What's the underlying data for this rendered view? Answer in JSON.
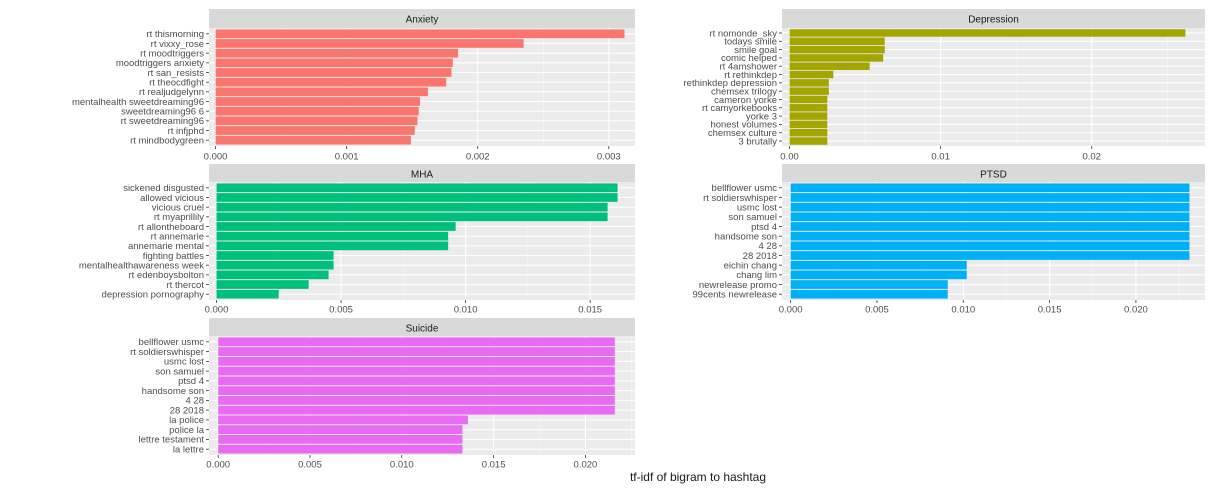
{
  "chart_data": {
    "type": "bar",
    "orientation": "horizontal",
    "xlabel": "tf-idf of bigram to hashtag",
    "grid": true,
    "legend": "none",
    "facet_strip_color": "#d9d9d9",
    "panel_background": "#ebebeb",
    "panels": [
      {
        "title": "Anxiety",
        "color": "#f8766d",
        "xlim": [
          -5e-05,
          0.0032
        ],
        "ticks": [
          0,
          0.001,
          0.002,
          0.003
        ],
        "tick_labels": [
          "0.000",
          "0.001",
          "0.002",
          "0.003"
        ],
        "categories": [
          "rt thismorning",
          "rt vixxy_rose",
          "rt moodtriggers",
          "moodtriggers anxiety",
          "rt san_resists",
          "rt theocdfight",
          "rt realjudgelynn",
          "mentalhealth sweetdreaming96",
          "sweetdreaming96 6",
          "rt sweetdreaming96",
          "rt infjphd",
          "rt mindbodygreen"
        ],
        "values": [
          0.00312,
          0.00235,
          0.00185,
          0.00181,
          0.0018,
          0.00176,
          0.00162,
          0.00156,
          0.00155,
          0.00154,
          0.00152,
          0.00149
        ]
      },
      {
        "title": "Depression",
        "color": "#a3a500",
        "xlim": [
          -0.0005,
          0.0275
        ],
        "ticks": [
          0,
          0.01,
          0.02
        ],
        "tick_labels": [
          "0.00",
          "0.01",
          "0.02"
        ],
        "categories": [
          "rt nomonde_sky",
          "todays smile",
          "smile goal",
          "comic helped",
          "rt 4amshower",
          "rt rethinkdep",
          "rethinkdep depression",
          "chemsex trilogy",
          "cameron yorke",
          "rt camyorkebooks",
          "yorke 3",
          "honest volumes",
          "chemsex culture",
          "3 brutally"
        ],
        "values": [
          0.0262,
          0.0063,
          0.0063,
          0.0062,
          0.0053,
          0.0029,
          0.0026,
          0.0026,
          0.0025,
          0.0025,
          0.0025,
          0.0025,
          0.0025,
          0.0025
        ]
      },
      {
        "title": "MHA",
        "color": "#00bf7d",
        "xlim": [
          -0.0003,
          0.0168
        ],
        "ticks": [
          0,
          0.005,
          0.01,
          0.015
        ],
        "tick_labels": [
          "0.000",
          "0.005",
          "0.010",
          "0.015"
        ],
        "categories": [
          "sickened disgusted",
          "allowed vicious",
          "vicious cruel",
          "rt myaprillily",
          "rt allontheboard",
          "rt annemarie",
          "annemarie mental",
          "fighting battles",
          "mentalhealthawareness week",
          "rt edenboysbolton",
          "rt thercot",
          "depression pornography"
        ],
        "values": [
          0.0161,
          0.0161,
          0.0157,
          0.0157,
          0.0096,
          0.0093,
          0.0093,
          0.0047,
          0.0047,
          0.0045,
          0.0037,
          0.0025
        ]
      },
      {
        "title": "PTSD",
        "color": "#00b0f6",
        "xlim": [
          -0.0005,
          0.024
        ],
        "ticks": [
          0,
          0.005,
          0.01,
          0.015,
          0.02
        ],
        "tick_labels": [
          "0.000",
          "0.005",
          "0.010",
          "0.015",
          "0.020"
        ],
        "categories": [
          "bellflower usmc",
          "rt soldierswhisper",
          "usmc lost",
          "son samuel",
          "ptsd 4",
          "handsome son",
          "4 28",
          "28 2018",
          "eichin chang",
          "chang lim",
          "newrelease promo",
          "99cents newrelease"
        ],
        "values": [
          0.0231,
          0.0231,
          0.0231,
          0.0231,
          0.0231,
          0.0231,
          0.0231,
          0.0231,
          0.0102,
          0.0102,
          0.0091,
          0.0091
        ]
      },
      {
        "title": "Suicide",
        "color": "#e76bf3",
        "xlim": [
          -0.0005,
          0.0227
        ],
        "ticks": [
          0,
          0.005,
          0.01,
          0.015,
          0.02
        ],
        "tick_labels": [
          "0.000",
          "0.005",
          "0.010",
          "0.015",
          "0.020"
        ],
        "categories": [
          "bellflower usmc",
          "rt soldierswhisper",
          "usmc lost",
          "son samuel",
          "ptsd 4",
          "handsome son",
          "4 28",
          "28 2018",
          "la police",
          "police la",
          "lettre testament",
          "la lettre"
        ],
        "values": [
          0.0216,
          0.0216,
          0.0216,
          0.0216,
          0.0216,
          0.0216,
          0.0216,
          0.0216,
          0.0136,
          0.0133,
          0.0133,
          0.0133
        ]
      }
    ]
  }
}
